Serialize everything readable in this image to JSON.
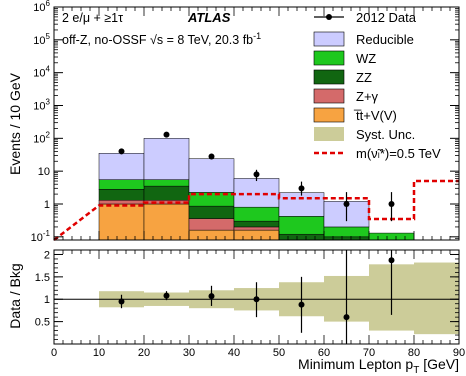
{
  "chart_data": [
    {
      "type": "bar",
      "panel": "main",
      "ylabel": "Events / 10 GeV",
      "yscale": "log",
      "xlim": [
        0,
        90
      ],
      "ylim": [
        0.08,
        1000000
      ],
      "bin_edges": [
        10,
        20,
        30,
        40,
        50,
        60,
        70,
        80,
        90
      ],
      "y_ticks": [
        {
          "v": 0.1,
          "base": "10",
          "exp": "-1"
        },
        {
          "v": 1,
          "base": "1",
          "exp": ""
        },
        {
          "v": 10,
          "base": "10",
          "exp": ""
        },
        {
          "v": 100,
          "base": "10",
          "exp": "2"
        },
        {
          "v": 1000,
          "base": "10",
          "exp": "3"
        },
        {
          "v": 10000,
          "base": "10",
          "exp": "4"
        },
        {
          "v": 100000,
          "base": "10",
          "exp": "5"
        },
        {
          "v": 1000000,
          "base": "10",
          "exp": "6"
        }
      ],
      "stack": [
        {
          "name": "t̅t+V(V)",
          "color": "#f7a341",
          "values": [
            1.0,
            1.0,
            0.16,
            0.16,
            0.05,
            0.05,
            0.05,
            0.05
          ]
        },
        {
          "name": "Z+γ",
          "color": "#d46a6a",
          "values": [
            0.3,
            0.3,
            0.2,
            0.04,
            0.02,
            0.02,
            0.0,
            0.0
          ]
        },
        {
          "name": "ZZ",
          "color": "#116611",
          "values": [
            1.5,
            2.2,
            0.5,
            0.1,
            0.05,
            0.03,
            0.0,
            0.0
          ]
        },
        {
          "name": "WZ",
          "color": "#1ec81e",
          "values": [
            2.7,
            2.0,
            1.4,
            0.5,
            0.3,
            0.1,
            0.08,
            0.0
          ]
        },
        {
          "name": "Reducible",
          "color": "#ccccff",
          "values": [
            29.5,
            94.5,
            21.7,
            5.2,
            1.8,
            1.0,
            0.0,
            0.0
          ]
        }
      ],
      "data_points": [
        {
          "x": 15,
          "y": 40,
          "err_lo": 33,
          "err_hi": 48
        },
        {
          "x": 25,
          "y": 130,
          "err_lo": 118,
          "err_hi": 142
        },
        {
          "x": 35,
          "y": 28,
          "err_lo": 23,
          "err_hi": 34
        },
        {
          "x": 45,
          "y": 8,
          "err_lo": 5,
          "err_hi": 11
        },
        {
          "x": 55,
          "y": 3,
          "err_lo": 1.8,
          "err_hi": 4.8
        },
        {
          "x": 65,
          "y": 1,
          "err_lo": 0.3,
          "err_hi": 2.3
        },
        {
          "x": 75,
          "y": 1,
          "err_lo": 0.3,
          "err_hi": 2.3
        }
      ],
      "signal": {
        "name": "m(ν̃ₗ*)=0.5 TeV",
        "color": "#e00000",
        "steps": [
          [
            0,
            0.08
          ],
          [
            10,
            0.9
          ],
          [
            20,
            0.9
          ],
          [
            20,
            1.1
          ],
          [
            30,
            1.1
          ],
          [
            30,
            2.0
          ],
          [
            40,
            2.0
          ],
          [
            50,
            2.0
          ],
          [
            50,
            1.5
          ],
          [
            60,
            1.5
          ],
          [
            70,
            1.5
          ],
          [
            70,
            0.35
          ],
          [
            80,
            0.35
          ],
          [
            80,
            5.0
          ],
          [
            90,
            5.0
          ]
        ]
      },
      "legend": {
        "data": "2012 Data",
        "reducible": "Reducible",
        "wz": "WZ",
        "zz": "ZZ",
        "zgamma": "Z+γ",
        "ttv": "t̅t+V(V)",
        "syst": "Syst. Unc.",
        "signal": "m(ν̃ₗ*)=0.5 TeV"
      },
      "labels": {
        "selection": "2 e/μ + ≥1τ",
        "experiment": "ATLAS",
        "region": "off-Z, no-OSSF",
        "energy": "√s = 8 TeV, 20.3 fb",
        "energy_exp": "-1"
      }
    },
    {
      "type": "scatter",
      "panel": "ratio",
      "ylabel": "Data / Bkg",
      "xlabel": "Minimum Lepton p",
      "xlabel_sub": "T",
      "xlabel_unit": " [GeV]",
      "xlim": [
        0,
        90
      ],
      "ylim": [
        0,
        2.1
      ],
      "x_ticks": [
        0,
        10,
        20,
        30,
        40,
        50,
        60,
        70,
        80,
        90
      ],
      "y_ticks": [
        0.5,
        1,
        1.5,
        2
      ],
      "y_tick_labels": [
        "0.5",
        "1",
        "1.5",
        "2"
      ],
      "reference_line": 1,
      "syst_band": [
        {
          "x0": 10,
          "x1": 20,
          "lo": 0.82,
          "hi": 1.18
        },
        {
          "x0": 20,
          "x1": 30,
          "lo": 0.85,
          "hi": 1.15
        },
        {
          "x0": 30,
          "x1": 40,
          "lo": 0.8,
          "hi": 1.2
        },
        {
          "x0": 40,
          "x1": 50,
          "lo": 0.75,
          "hi": 1.25
        },
        {
          "x0": 50,
          "x1": 60,
          "lo": 0.62,
          "hi": 1.38
        },
        {
          "x0": 60,
          "x1": 70,
          "lo": 0.5,
          "hi": 1.52
        },
        {
          "x0": 70,
          "x1": 80,
          "lo": 0.3,
          "hi": 1.78
        },
        {
          "x0": 80,
          "x1": 90,
          "lo": 0.22,
          "hi": 1.82
        }
      ],
      "points": [
        {
          "x": 15,
          "y": 0.95,
          "err_lo": 0.8,
          "err_hi": 1.1
        },
        {
          "x": 25,
          "y": 1.08,
          "err_lo": 0.98,
          "err_hi": 1.18
        },
        {
          "x": 35,
          "y": 1.07,
          "err_lo": 0.85,
          "err_hi": 1.3
        },
        {
          "x": 45,
          "y": 1.0,
          "err_lo": 0.6,
          "err_hi": 1.38
        },
        {
          "x": 55,
          "y": 0.88,
          "err_lo": 0.25,
          "err_hi": 1.5
        },
        {
          "x": 65,
          "y": 0.6,
          "err_lo": 0.0,
          "err_hi": 2.1
        },
        {
          "x": 75,
          "y": 1.87,
          "err_lo": 0.65,
          "err_hi": 2.1
        }
      ]
    }
  ],
  "style": {
    "syst_color": "#cccc99",
    "axis_color": "#000000"
  }
}
